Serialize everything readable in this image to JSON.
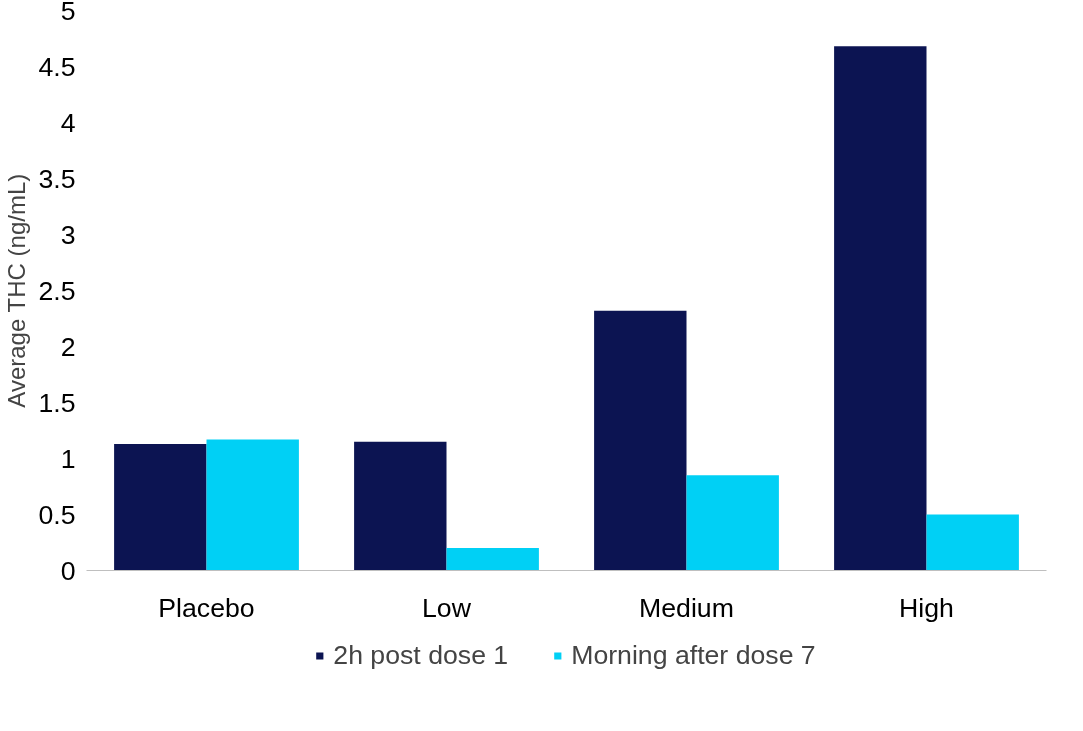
{
  "chart_data": {
    "type": "bar",
    "ylabel": "Average THC (ng/mL)",
    "categories": [
      "Placebo",
      "Low",
      "Medium",
      "High"
    ],
    "series": [
      {
        "name": "2h post dose 1",
        "color": "#0c1452",
        "values": [
          1.13,
          1.15,
          2.32,
          4.68
        ]
      },
      {
        "name": "Morning after dose 7",
        "color": "#00d0f5",
        "values": [
          1.17,
          0.2,
          0.85,
          0.5
        ]
      }
    ],
    "ylim": [
      0,
      5
    ],
    "yticks": [
      0,
      0.5,
      1,
      1.5,
      2,
      2.5,
      3,
      3.5,
      4,
      4.5,
      5
    ],
    "grid": false,
    "legend": "bottom"
  }
}
